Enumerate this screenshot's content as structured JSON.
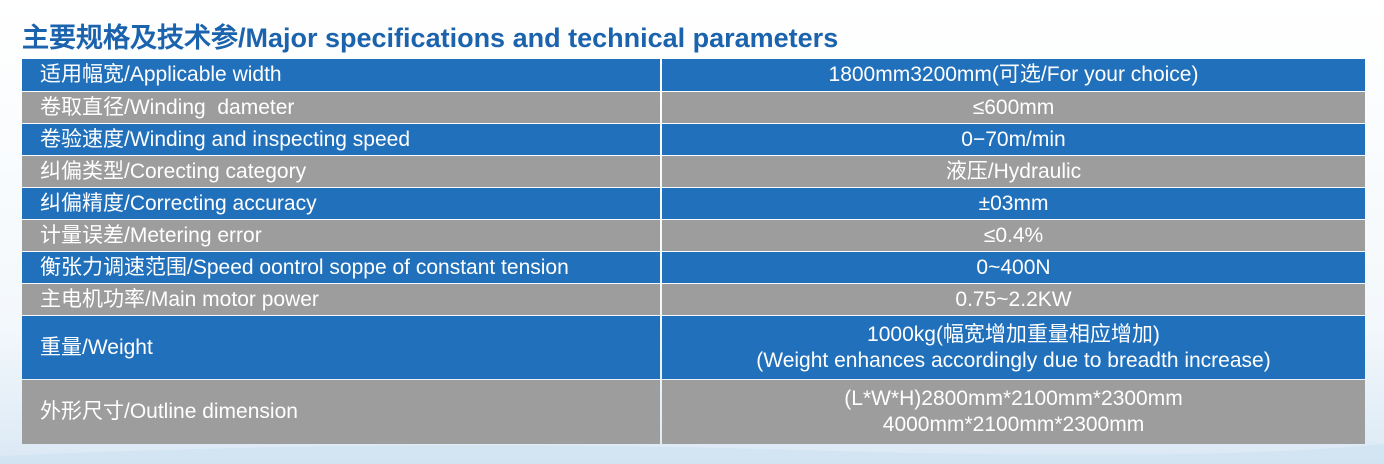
{
  "header": {
    "title": "主要规格及技术参/Major specifications and technical parameters"
  },
  "table": {
    "rows": [
      [
        "适用幅宽/Applicable width",
        [
          "1800mm3200mm(可选/For your choice)"
        ]
      ],
      [
        "卷取直径/Winding  dameter",
        [
          "≤600mm"
        ]
      ],
      [
        "卷验速度/Winding and inspecting speed",
        [
          "0−70m/min"
        ]
      ],
      [
        "纠偏类型/Corecting category",
        [
          "液压/Hydraulic"
        ]
      ],
      [
        "纠偏精度/Correcting accuracy",
        [
          "±03mm"
        ]
      ],
      [
        "计量误差/Metering error",
        [
          "≤0.4%"
        ]
      ],
      [
        "衡张力调速范围/Speed oontrol soppe of constant tension",
        [
          "0~400N"
        ]
      ],
      [
        "主电机功率/Main motor power",
        [
          "0.75~2.2KW"
        ]
      ],
      [
        "重量/Weight",
        [
          "1000kg(幅宽增加重量相应增加)",
          "(Weight enhances accordingly due to breadth increase)"
        ]
      ],
      [
        "外形尺寸/Outline dimension",
        [
          "(L*W*H)2800mm*2100mm*2300mm",
          "4000mm*2100mm*2300mm"
        ]
      ]
    ]
  }
}
